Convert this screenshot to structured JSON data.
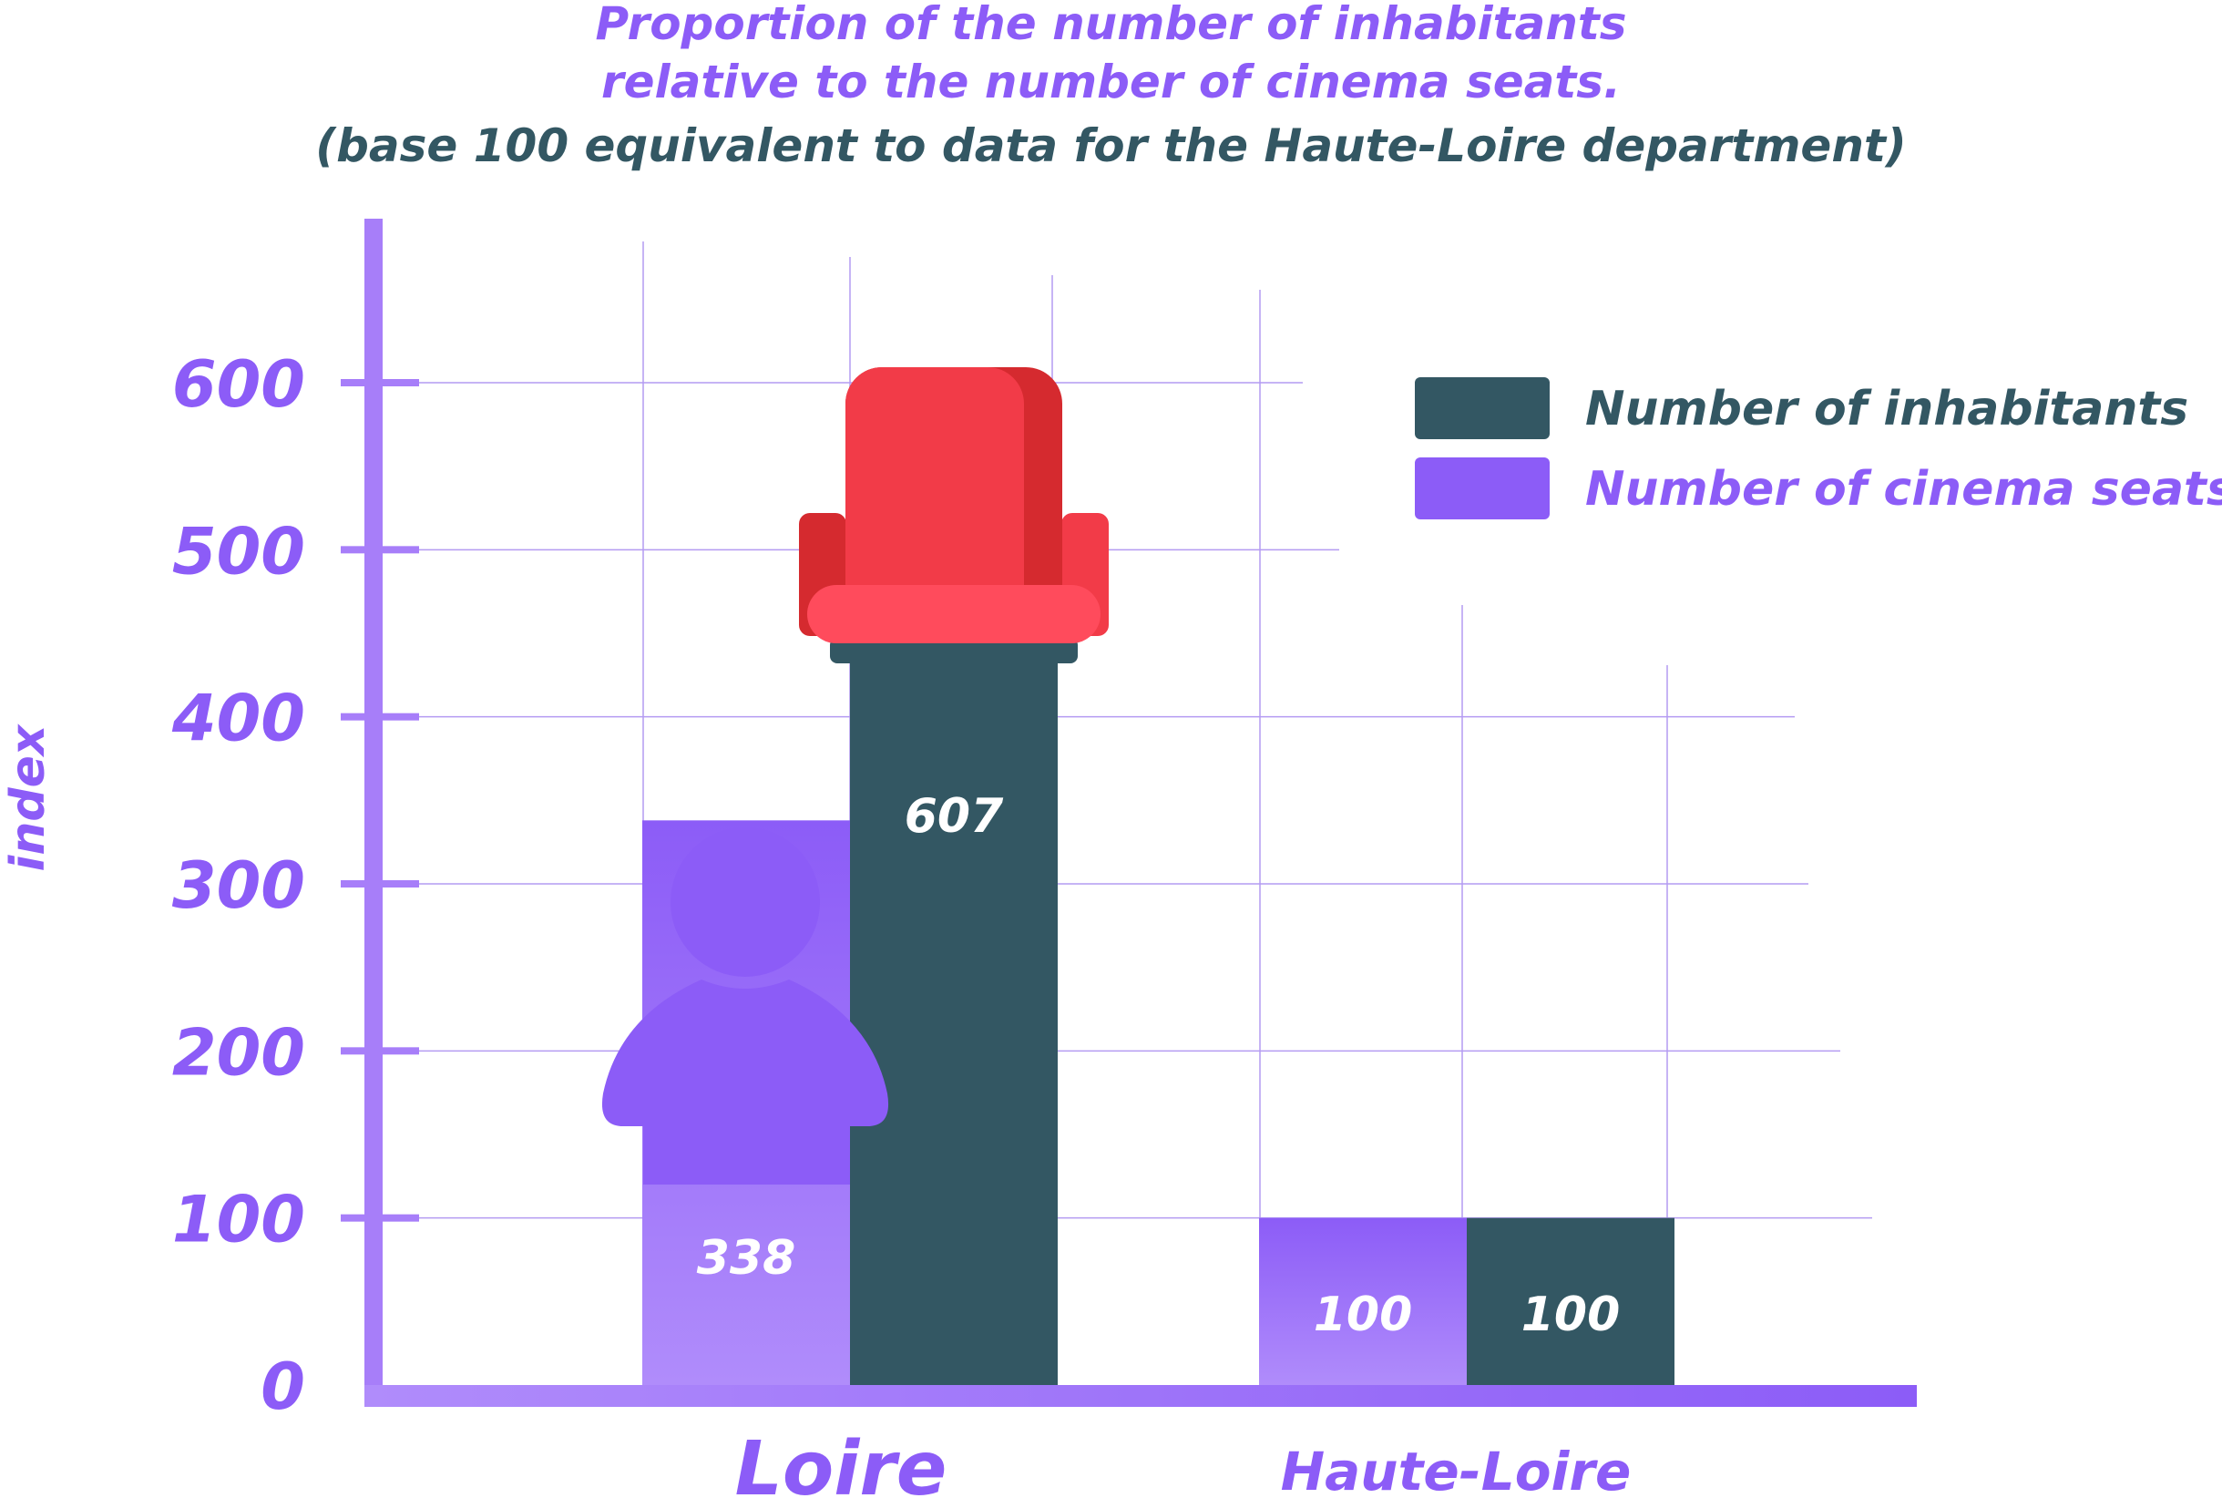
{
  "titles": {
    "line1": "Proportion of the number of inhabitants",
    "line2": "relative to the number of cinema seats.",
    "line3": "(base 100 equivalent to data for the Haute-Loire department)"
  },
  "colors": {
    "purple": "#8c5cf7",
    "purple_light": "#b08cfb",
    "teal": "#335763",
    "axis": "#a77ef9",
    "grid": "#b49bf2",
    "seat_red": "#f23b48",
    "seat_dark": "#d52a2f",
    "seat_light": "#ff4b5c"
  },
  "chart_data": {
    "type": "bar",
    "categories": [
      "Loire",
      "Haute-Loire"
    ],
    "series": [
      {
        "name": "Number of cinema seats",
        "values": [
          338,
          100
        ],
        "color": "#8c5cf7"
      },
      {
        "name": "Number of inhabitants",
        "values": [
          607,
          100
        ],
        "color": "#335763"
      }
    ],
    "ylabel": "index",
    "yticks": [
      0,
      100,
      200,
      300,
      400,
      500,
      600
    ],
    "ylim": [
      0,
      600
    ],
    "legend_position": "top-right",
    "legend": [
      {
        "label": "Number of inhabitants",
        "color": "#335763"
      },
      {
        "label": "Number of cinema seats",
        "color": "#8c5cf7"
      }
    ],
    "decorations": [
      "person-icon",
      "cinema-seat-icon"
    ]
  }
}
